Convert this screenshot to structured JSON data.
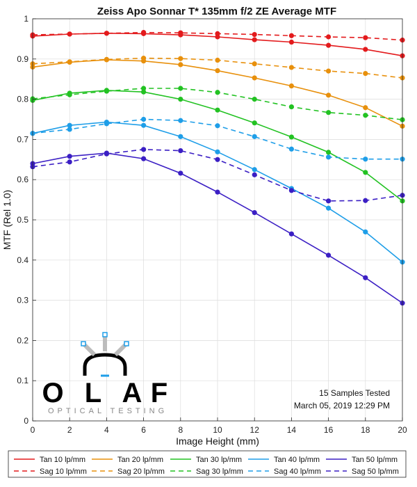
{
  "chart_data": {
    "type": "line",
    "title": "Zeiss Apo Sonnar T* 135mm f/2 ZE Average MTF",
    "xlabel": "Image Height (mm)",
    "ylabel": "MTF (Rel 1.0)",
    "xlim": [
      0,
      20
    ],
    "ylim": [
      0,
      1
    ],
    "xticks": [
      "0",
      "2",
      "4",
      "6",
      "8",
      "10",
      "12",
      "14",
      "16",
      "18",
      "20"
    ],
    "yticks": [
      "0",
      "0.1",
      "0.2",
      "0.3",
      "0.4",
      "0.5",
      "0.6",
      "0.7",
      "0.8",
      "0.9",
      "1"
    ],
    "grid": true,
    "legend_position": "bottom",
    "x": [
      0,
      2,
      4,
      6,
      8,
      10,
      12,
      14,
      16,
      18,
      20
    ],
    "series": [
      {
        "name": "Tan 10 lp/mm",
        "color": "#e31a1c",
        "dash": "solid",
        "values": [
          0.957,
          0.962,
          0.964,
          0.963,
          0.96,
          0.955,
          0.948,
          0.942,
          0.934,
          0.924,
          0.908
        ]
      },
      {
        "name": "Sag 10 lp/mm",
        "color": "#e31a1c",
        "dash": "dashed",
        "values": [
          0.96,
          0.962,
          0.964,
          0.966,
          0.965,
          0.963,
          0.961,
          0.958,
          0.955,
          0.953,
          0.947
        ]
      },
      {
        "name": "Tan 20 lp/mm",
        "color": "#e8900c",
        "dash": "solid",
        "values": [
          0.88,
          0.892,
          0.898,
          0.895,
          0.886,
          0.871,
          0.853,
          0.833,
          0.81,
          0.779,
          0.733
        ]
      },
      {
        "name": "Sag 20 lp/mm",
        "color": "#e8900c",
        "dash": "dashed",
        "values": [
          0.888,
          0.893,
          0.899,
          0.902,
          0.901,
          0.897,
          0.888,
          0.879,
          0.87,
          0.864,
          0.853
        ]
      },
      {
        "name": "Tan 30 lp/mm",
        "color": "#22c222",
        "dash": "solid",
        "values": [
          0.797,
          0.815,
          0.822,
          0.818,
          0.8,
          0.773,
          0.741,
          0.706,
          0.668,
          0.618,
          0.547
        ]
      },
      {
        "name": "Sag 30 lp/mm",
        "color": "#22c222",
        "dash": "dashed",
        "values": [
          0.801,
          0.811,
          0.82,
          0.827,
          0.827,
          0.817,
          0.8,
          0.781,
          0.767,
          0.76,
          0.749
        ]
      },
      {
        "name": "Tan 40 lp/mm",
        "color": "#1e9ee8",
        "dash": "solid",
        "values": [
          0.715,
          0.735,
          0.743,
          0.735,
          0.707,
          0.669,
          0.625,
          0.578,
          0.529,
          0.47,
          0.395
        ]
      },
      {
        "name": "Sag 40 lp/mm",
        "color": "#1e9ee8",
        "dash": "dashed",
        "values": [
          0.715,
          0.725,
          0.739,
          0.75,
          0.747,
          0.734,
          0.707,
          0.676,
          0.656,
          0.651,
          0.651
        ]
      },
      {
        "name": "Tan 50 lp/mm",
        "color": "#3b1fc4",
        "dash": "solid",
        "values": [
          0.64,
          0.658,
          0.666,
          0.652,
          0.616,
          0.569,
          0.518,
          0.465,
          0.412,
          0.356,
          0.293
        ]
      },
      {
        "name": "Sag 50 lp/mm",
        "color": "#3b1fc4",
        "dash": "dashed",
        "values": [
          0.632,
          0.644,
          0.664,
          0.675,
          0.672,
          0.65,
          0.612,
          0.573,
          0.547,
          0.548,
          0.561
        ]
      }
    ],
    "annotations": [
      "15 Samples Tested",
      "March 05, 2019 12:29 PM"
    ]
  },
  "watermark": {
    "letters": [
      "O",
      "L",
      "A",
      "F"
    ],
    "subtitle": "OPTICAL TESTING"
  }
}
